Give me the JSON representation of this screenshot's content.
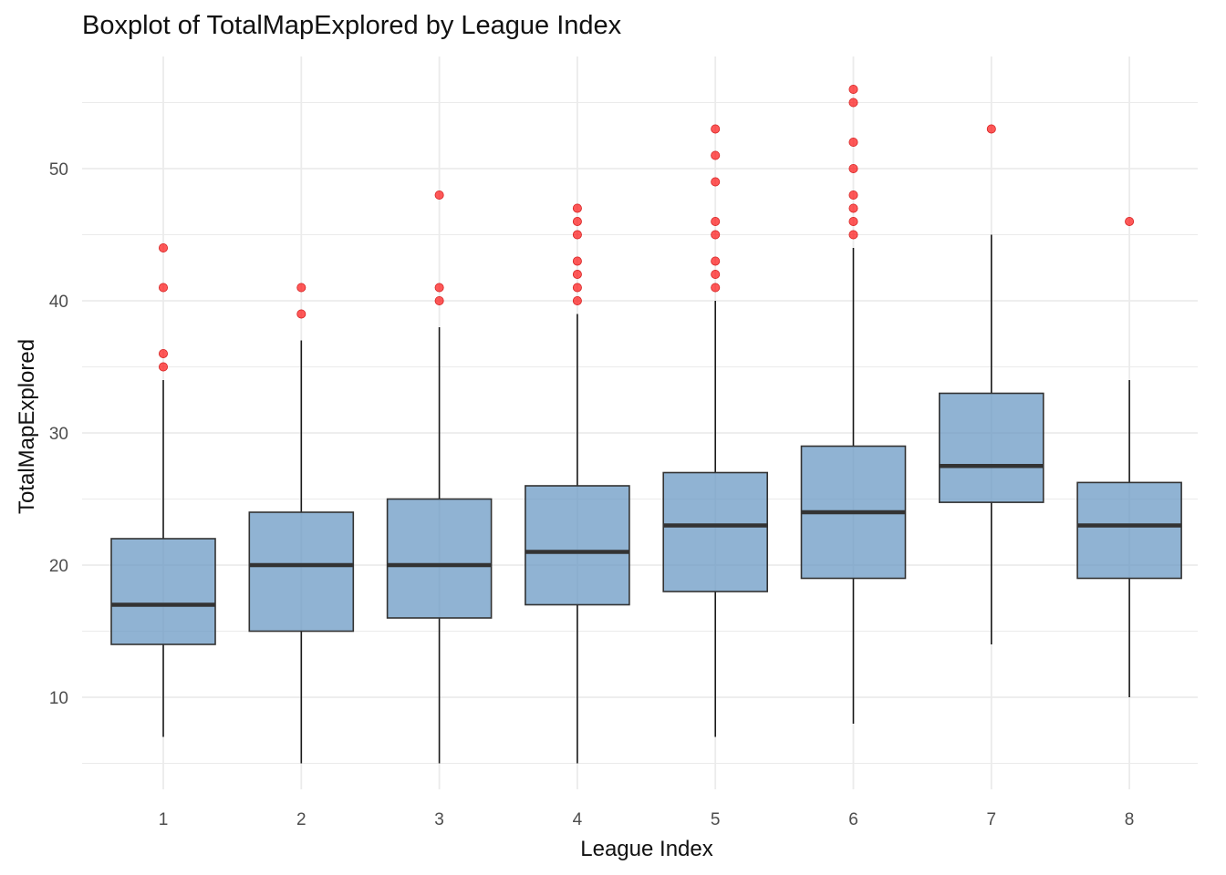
{
  "chart_data": {
    "type": "boxplot",
    "title": "Boxplot of TotalMapExplored by League Index",
    "xlabel": "League Index",
    "ylabel": "TotalMapExplored",
    "categories": [
      "1",
      "2",
      "3",
      "4",
      "5",
      "6",
      "7",
      "8"
    ],
    "y_ticks": [
      10,
      20,
      30,
      40,
      50
    ],
    "ylim": [
      5,
      56
    ],
    "grid": true,
    "colors": {
      "box_fill": "#6b9ac4",
      "box_border": "#333333",
      "outlier": "#ff0000",
      "grid": "#ebebeb"
    },
    "boxes": [
      {
        "category": "1",
        "whisker_low": 7,
        "q1": 14,
        "median": 17,
        "q3": 22,
        "whisker_high": 34,
        "outliers": [
          35,
          36,
          41,
          44
        ]
      },
      {
        "category": "2",
        "whisker_low": 5,
        "q1": 15,
        "median": 20,
        "q3": 24,
        "whisker_high": 37,
        "outliers": [
          39,
          41
        ]
      },
      {
        "category": "3",
        "whisker_low": 5,
        "q1": 16,
        "median": 20,
        "q3": 25,
        "whisker_high": 38,
        "outliers": [
          40,
          41,
          48
        ]
      },
      {
        "category": "4",
        "whisker_low": 5,
        "q1": 17,
        "median": 21,
        "q3": 26,
        "whisker_high": 39,
        "outliers": [
          40,
          41,
          42,
          43,
          45,
          46,
          47
        ]
      },
      {
        "category": "5",
        "whisker_low": 7,
        "q1": 18,
        "median": 23,
        "q3": 27,
        "whisker_high": 40,
        "outliers": [
          41,
          42,
          43,
          45,
          46,
          49,
          51,
          53
        ]
      },
      {
        "category": "6",
        "whisker_low": 8,
        "q1": 19,
        "median": 24,
        "q3": 29,
        "whisker_high": 44,
        "outliers": [
          45,
          46,
          47,
          48,
          50,
          52,
          55,
          56
        ]
      },
      {
        "category": "7",
        "whisker_low": 14,
        "q1": 24.75,
        "median": 27.5,
        "q3": 33,
        "whisker_high": 45,
        "outliers": [
          53
        ]
      },
      {
        "category": "8",
        "whisker_low": 10,
        "q1": 19,
        "median": 23,
        "q3": 26.25,
        "whisker_high": 34,
        "outliers": [
          46
        ]
      }
    ]
  }
}
